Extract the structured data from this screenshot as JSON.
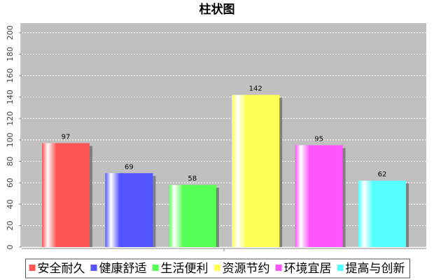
{
  "chart_data": {
    "type": "bar",
    "title": "柱状图",
    "series": [
      {
        "name": "安全耐久",
        "color": "#ff5555",
        "values": [
          97
        ]
      },
      {
        "name": "健康舒适",
        "color": "#5555ff",
        "values": [
          69
        ]
      },
      {
        "name": "生活便利",
        "color": "#55ff55",
        "values": [
          58
        ]
      },
      {
        "name": "资源节约",
        "color": "#ffff55",
        "values": [
          142
        ]
      },
      {
        "name": "环境宜居",
        "color": "#ff55ff",
        "values": [
          95
        ]
      },
      {
        "name": "提高与创新",
        "color": "#55ffff",
        "values": [
          62
        ]
      }
    ],
    "ylim": [
      0,
      209
    ],
    "yticks": [
      0,
      20,
      40,
      60,
      80,
      100,
      120,
      140,
      160,
      180,
      200
    ],
    "grid": true,
    "legend": "bottom"
  }
}
